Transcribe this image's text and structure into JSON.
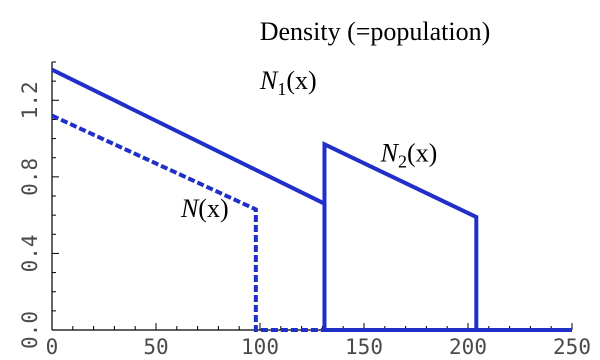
{
  "chart_data": {
    "type": "line",
    "title": "Density (=population)",
    "xlabel": "",
    "ylabel": "",
    "xlim": [
      0,
      250
    ],
    "ylim": [
      0,
      1.4
    ],
    "x_ticks": [
      0,
      50,
      100,
      150,
      200,
      250
    ],
    "x_tick_labels": [
      "0",
      "50",
      "100",
      "150",
      "200",
      "250"
    ],
    "y_ticks": [
      0.0,
      0.4,
      0.8,
      1.2
    ],
    "y_tick_labels": [
      "0.0",
      "0.4",
      "0.8",
      "1.2"
    ],
    "grid": false,
    "legend": "none",
    "series": [
      {
        "name": "N_1(x)",
        "label_main": "N",
        "label_sub": "1",
        "label_tail": "(x)",
        "label_at": [
          100,
          1.26
        ],
        "style": "solid",
        "color": "#1f2fc8",
        "x": [
          0,
          131,
          131,
          204,
          204,
          250
        ],
        "y": [
          1.36,
          0.66,
          0.0,
          0.0,
          0.0,
          0.0
        ]
      },
      {
        "name": "N_2(x)",
        "label_main": "N",
        "label_sub": "2",
        "label_tail": "(x)",
        "label_at": [
          158,
          0.88
        ],
        "style": "solid",
        "color": "#1f2fc8",
        "x": [
          131,
          131,
          204,
          204
        ],
        "y": [
          0.0,
          0.97,
          0.59,
          0.0
        ]
      },
      {
        "name": "N(x)",
        "label_main": "N",
        "label_sub": "",
        "label_tail": "(x)",
        "label_at": [
          62,
          0.59
        ],
        "style": "dashed",
        "color": "#1f2fc8",
        "x": [
          0,
          98,
          98,
          100,
          100,
          131
        ],
        "y": [
          1.12,
          0.63,
          0.0,
          0.0,
          0.0,
          0.0
        ]
      }
    ]
  }
}
